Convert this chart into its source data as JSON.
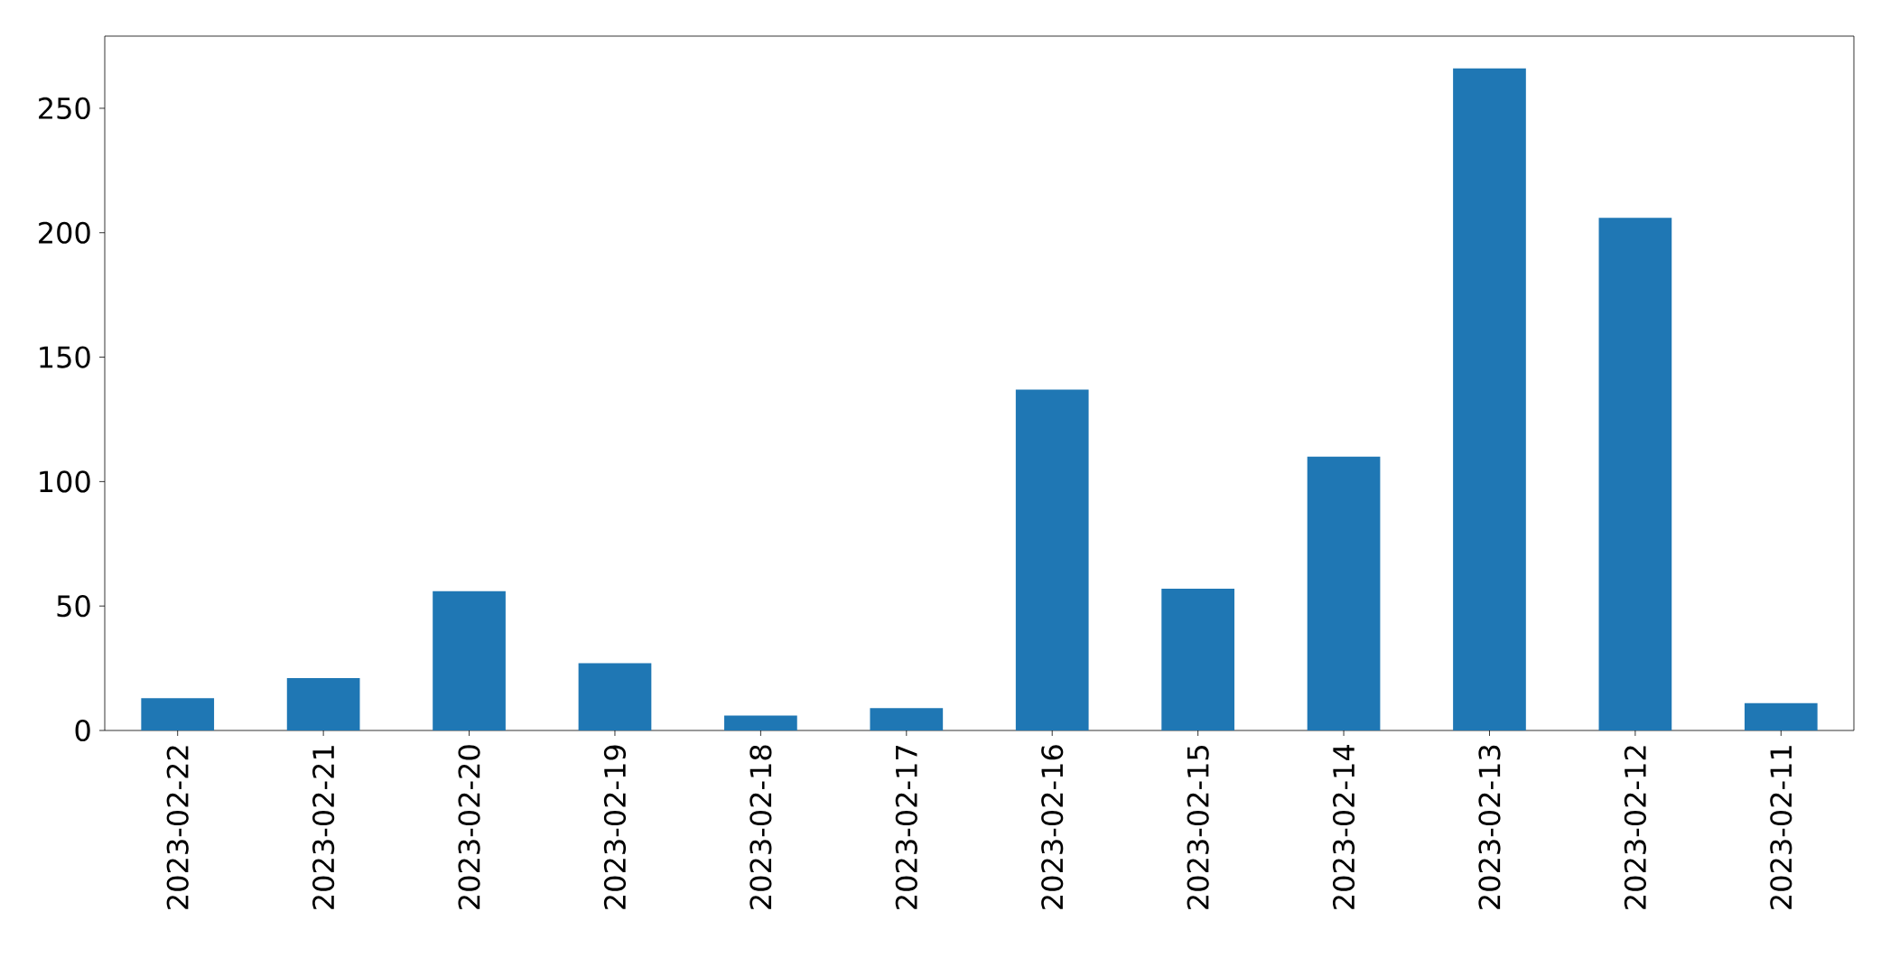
{
  "chart_data": {
    "type": "bar",
    "categories": [
      "2023-02-22",
      "2023-02-21",
      "2023-02-20",
      "2023-02-19",
      "2023-02-18",
      "2023-02-17",
      "2023-02-16",
      "2023-02-15",
      "2023-02-14",
      "2023-02-13",
      "2023-02-12",
      "2023-02-11"
    ],
    "values": [
      13,
      21,
      56,
      27,
      6,
      9,
      137,
      57,
      110,
      266,
      206,
      11
    ],
    "color": "#1f77b4",
    "ylim": [
      0,
      279
    ],
    "yticks": [
      0,
      50,
      100,
      150,
      200,
      250
    ]
  }
}
